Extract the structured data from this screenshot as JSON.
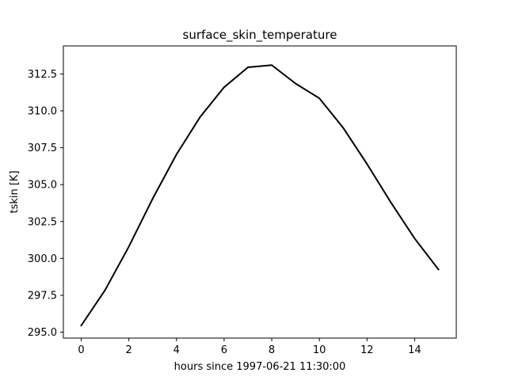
{
  "chart_data": {
    "type": "line",
    "title": "surface_skin_temperature",
    "xlabel": "hours since 1997-06-21 11:30:00",
    "ylabel": "tskin [K]",
    "xlim": [
      -0.75,
      15.75
    ],
    "ylim": [
      294.6,
      314.4
    ],
    "xticks": [
      0,
      2,
      4,
      6,
      8,
      10,
      12,
      14
    ],
    "xtick_labels": [
      "0",
      "2",
      "4",
      "6",
      "8",
      "10",
      "12",
      "14"
    ],
    "yticks": [
      295.0,
      297.5,
      300.0,
      302.5,
      305.0,
      307.5,
      310.0,
      312.5
    ],
    "ytick_labels": [
      "295.0",
      "297.5",
      "300.0",
      "302.5",
      "305.0",
      "307.5",
      "310.0",
      "312.5"
    ],
    "grid": false,
    "series": [
      {
        "color": "#000000",
        "x": [
          0,
          1,
          2,
          3,
          4,
          5,
          6,
          7,
          8,
          9,
          10,
          11,
          12,
          13,
          14,
          15
        ],
        "y": [
          295.45,
          297.85,
          300.8,
          304.05,
          307.05,
          309.6,
          311.6,
          312.95,
          313.1,
          311.85,
          310.85,
          308.85,
          306.4,
          303.8,
          301.35,
          299.25
        ]
      }
    ]
  }
}
